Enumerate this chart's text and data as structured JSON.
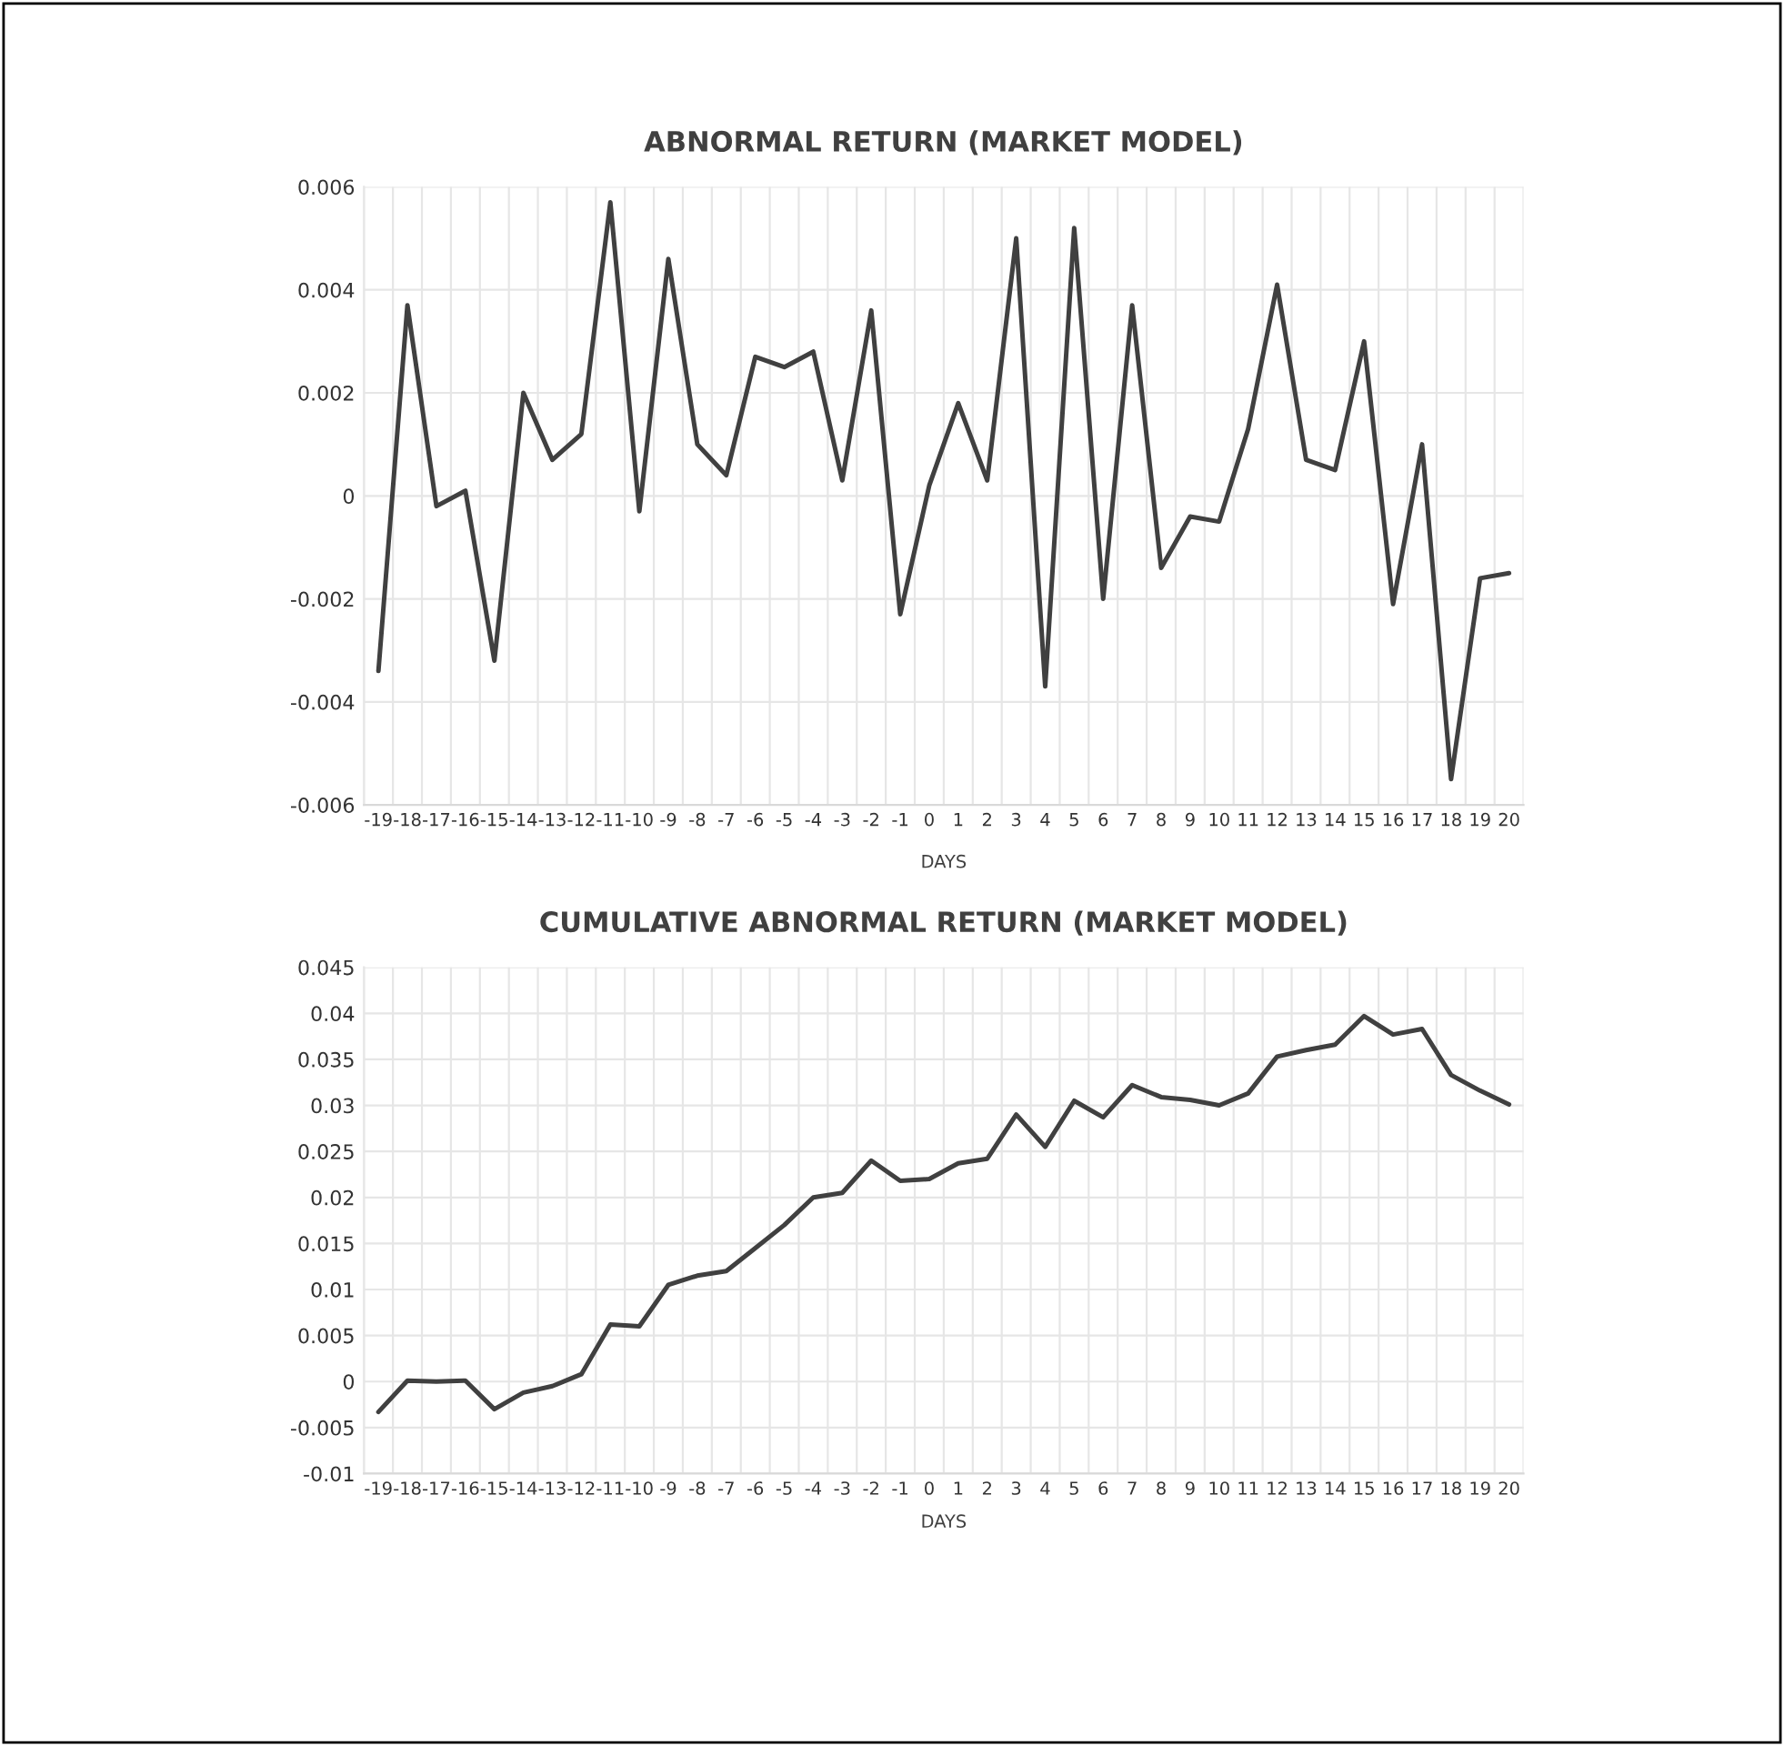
{
  "chart_data": [
    {
      "type": "line",
      "title": "ABNORMAL RETURN (MARKET MODEL)",
      "xlabel": "DAYS",
      "categories": [
        "-19",
        "-18",
        "-17",
        "-16",
        "-15",
        "-14",
        "-13",
        "-12",
        "-11",
        "-10",
        "-9",
        "-8",
        "-7",
        "-6",
        "-5",
        "-4",
        "-3",
        "-2",
        "-1",
        "0",
        "1",
        "2",
        "3",
        "4",
        "5",
        "6",
        "7",
        "8",
        "9",
        "10",
        "11",
        "12",
        "13",
        "14",
        "15",
        "16",
        "17",
        "18",
        "19",
        "20"
      ],
      "series": [
        {
          "color": "#404040",
          "values": [
            -0.0034,
            0.0037,
            -0.0002,
            0.0001,
            -0.0032,
            0.002,
            0.0007,
            0.0012,
            0.0057,
            -0.0003,
            0.0046,
            0.001,
            0.0004,
            0.0027,
            0.0025,
            0.0028,
            0.0003,
            0.0036,
            -0.0023,
            0.0002,
            0.0018,
            0.0003,
            0.005,
            -0.0037,
            0.0052,
            -0.002,
            0.0037,
            -0.0014,
            -0.0004,
            -0.0005,
            0.0013,
            0.0041,
            0.0007,
            0.0005,
            0.003,
            -0.0021,
            0.001,
            -0.0055,
            -0.0016,
            -0.0015
          ]
        }
      ],
      "ylim": [
        -0.006,
        0.006
      ],
      "yticks": [
        -0.006,
        -0.004,
        -0.002,
        0,
        0.002,
        0.004,
        0.006
      ],
      "grid": true,
      "marker": "none",
      "line_style": "solid"
    },
    {
      "type": "line",
      "title": "CUMULATIVE ABNORMAL RETURN (MARKET MODEL)",
      "xlabel": "DAYS",
      "categories": [
        "-19",
        "-18",
        "-17",
        "-16",
        "-15",
        "-14",
        "-13",
        "-12",
        "-11",
        "-10",
        "-9",
        "-8",
        "-7",
        "-6",
        "-5",
        "-4",
        "-3",
        "-2",
        "-1",
        "0",
        "1",
        "2",
        "3",
        "4",
        "5",
        "6",
        "7",
        "8",
        "9",
        "10",
        "11",
        "12",
        "13",
        "14",
        "15",
        "16",
        "17",
        "18",
        "19",
        "20"
      ],
      "series": [
        {
          "color": "#404040",
          "values": [
            -0.0033,
            0.0001,
            0.0,
            0.0001,
            -0.003,
            -0.0012,
            -0.0005,
            0.0008,
            0.0062,
            0.006,
            0.0105,
            0.0115,
            0.012,
            0.0145,
            0.017,
            0.02,
            0.0205,
            0.024,
            0.0218,
            0.022,
            0.0237,
            0.0242,
            0.029,
            0.0255,
            0.0305,
            0.0287,
            0.0322,
            0.0309,
            0.0306,
            0.03,
            0.0313,
            0.0353,
            0.036,
            0.0366,
            0.0397,
            0.0377,
            0.0383,
            0.0333,
            0.0316,
            0.0301
          ]
        }
      ],
      "ylim": [
        -0.01,
        0.045
      ],
      "yticks": [
        -0.01,
        -0.005,
        0,
        0.005,
        0.01,
        0.015,
        0.02,
        0.025,
        0.03,
        0.035,
        0.04,
        0.045
      ],
      "grid": true,
      "marker": "none",
      "line_style": "solid"
    }
  ]
}
